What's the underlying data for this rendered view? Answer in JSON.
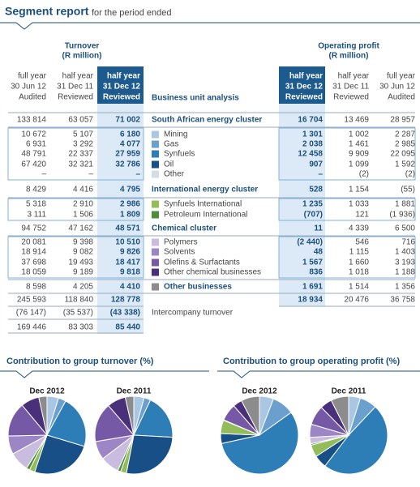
{
  "header": {
    "title": "Segment report",
    "subtitle": "for the period ended"
  },
  "table": {
    "turnover_title": "Turnover",
    "turnover_unit": "(R million)",
    "profit_title": "Operating profit",
    "profit_unit": "(R million)",
    "label_header": "Business unit analysis",
    "turnover_columns": [
      [
        "full year",
        "30 Jun 12",
        "Audited"
      ],
      [
        "half year",
        "31 Dec 11",
        "Reviewed"
      ],
      [
        "half year",
        "31 Dec 12",
        "Reviewed"
      ]
    ],
    "profit_columns": [
      [
        "half year",
        "31 Dec 12",
        "Reviewed"
      ],
      [
        "half year",
        "31 Dec 11",
        "Reviewed"
      ],
      [
        "full year",
        "30 Jun 12",
        "Audited"
      ]
    ],
    "rows": [
      {
        "turnover": [
          "133 814",
          "63 057",
          "71 002"
        ],
        "label": "South African energy cluster",
        "profit": [
          "16 704",
          "13 469",
          "28 957"
        ],
        "bold": true
      },
      {
        "turnover": [
          "10 672",
          "5 107",
          "6 180"
        ],
        "label": "Mining",
        "profit": [
          "1 301",
          "1 002",
          "2 287"
        ],
        "color": "#a9c6e3"
      },
      {
        "turnover": [
          "6 931",
          "3 292",
          "4 077"
        ],
        "label": "Gas",
        "profit": [
          "2 038",
          "1 461",
          "2 985"
        ],
        "color": "#6b9fce"
      },
      {
        "turnover": [
          "48 791",
          "22 337",
          "27 959"
        ],
        "label": "Synfuels",
        "profit": [
          "12 458",
          "9 909",
          "22 095"
        ],
        "color": "#2d7db6"
      },
      {
        "turnover": [
          "67 420",
          "32 321",
          "32 786"
        ],
        "label": "Oil",
        "profit": [
          "907",
          "1 099",
          "1 592"
        ],
        "color": "#174f86"
      },
      {
        "turnover": [
          "–",
          "–",
          "–"
        ],
        "label": "Other",
        "profit": [
          "–",
          "(2)",
          "(2)"
        ],
        "color": "#d3dde6"
      },
      {
        "turnover": [
          "8 429",
          "4 416",
          "4 795"
        ],
        "label": "International energy cluster",
        "profit": [
          "528",
          "1 154",
          "(55)"
        ],
        "bold": true
      },
      {
        "turnover": [
          "5 318",
          "2 910",
          "2 986"
        ],
        "label": "Synfuels International",
        "profit": [
          "1 235",
          "1 033",
          "1 881"
        ],
        "color": "#93bd5a"
      },
      {
        "turnover": [
          "3 111",
          "1 506",
          "1 809"
        ],
        "label": "Petroleum International",
        "profit": [
          "(707)",
          "121",
          "(1 936)"
        ],
        "color": "#4f8d3b"
      },
      {
        "turnover": [
          "94 752",
          "47 162",
          "48 571"
        ],
        "label": "Chemical cluster",
        "profit": [
          "11",
          "4 339",
          "6 500"
        ],
        "bold": true
      },
      {
        "turnover": [
          "20 081",
          "9 398",
          "10 510"
        ],
        "label": "Polymers",
        "profit": [
          "(2 440)",
          "546",
          "716"
        ],
        "color": "#c9bcdf"
      },
      {
        "turnover": [
          "18 914",
          "9 082",
          "9 826"
        ],
        "label": "Solvents",
        "profit": [
          "48",
          "1 115",
          "1 403"
        ],
        "color": "#9d86c5"
      },
      {
        "turnover": [
          "37 698",
          "19 493",
          "18 417"
        ],
        "label": "Olefins & Surfactants",
        "profit": [
          "1 567",
          "1 660",
          "3 193"
        ],
        "color": "#7659a6"
      },
      {
        "turnover": [
          "18 059",
          "9 189",
          "9 818"
        ],
        "label": "Other chemical businesses",
        "profit": [
          "836",
          "1 018",
          "1 188"
        ],
        "color": "#4a2f7a"
      },
      {
        "turnover": [
          "8 598",
          "4 205",
          "4 410"
        ],
        "label": "Other businesses",
        "profit": [
          "1 691",
          "1 514",
          "1 356"
        ],
        "color": "#8c8c8c",
        "bold": true
      },
      {
        "turnover": [
          "245 593",
          "118 840",
          "128 778"
        ],
        "profit": [
          "18 934",
          "20 476",
          "36 758"
        ]
      },
      {
        "turnover": [
          "(76 147)",
          "(35 537)",
          "(43 338)"
        ],
        "label": "Intercompany turnover"
      },
      {
        "turnover": [
          "169 446",
          "83 303",
          "85 440"
        ]
      }
    ]
  },
  "sections": [
    "Contribution to group turnover (%)",
    "Contribution to group operating profit (%)"
  ],
  "chart_data": [
    {
      "type": "pie",
      "title": "Dec 2012",
      "values": [
        6180,
        4077,
        27959,
        32786,
        2986,
        1809,
        10510,
        9826,
        18417,
        9818,
        4410
      ],
      "colors": [
        "#a9c6e3",
        "#6b9fce",
        "#2d7db6",
        "#174f86",
        "#93bd5a",
        "#4f8d3b",
        "#c9bcdf",
        "#9d86c5",
        "#7659a6",
        "#4a2f7a",
        "#8c8c8c"
      ]
    },
    {
      "type": "pie",
      "title": "Dec 2011",
      "values": [
        5107,
        3292,
        22337,
        32321,
        2910,
        1506,
        9398,
        9082,
        19493,
        9189,
        4205
      ],
      "colors": [
        "#a9c6e3",
        "#6b9fce",
        "#2d7db6",
        "#174f86",
        "#93bd5a",
        "#4f8d3b",
        "#c9bcdf",
        "#9d86c5",
        "#7659a6",
        "#4a2f7a",
        "#8c8c8c"
      ]
    },
    {
      "type": "pie",
      "title": "Dec 2012",
      "values": [
        1301,
        2038,
        12458,
        907,
        1235,
        48,
        1567,
        836,
        1691
      ],
      "colors": [
        "#a9c6e3",
        "#6b9fce",
        "#2d7db6",
        "#174f86",
        "#93bd5a",
        "#9d86c5",
        "#7659a6",
        "#4a2f7a",
        "#8c8c8c"
      ]
    },
    {
      "type": "pie",
      "title": "Dec 2011",
      "values": [
        1002,
        1461,
        9909,
        1099,
        1033,
        121,
        546,
        1115,
        1660,
        1018,
        1514
      ],
      "colors": [
        "#a9c6e3",
        "#6b9fce",
        "#2d7db6",
        "#174f86",
        "#93bd5a",
        "#4f8d3b",
        "#c9bcdf",
        "#9d86c5",
        "#7659a6",
        "#4a2f7a",
        "#8c8c8c"
      ]
    }
  ]
}
